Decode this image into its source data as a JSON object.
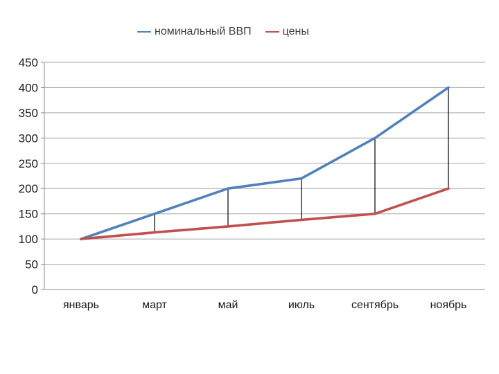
{
  "chart_data": {
    "type": "line",
    "title": "",
    "categories": [
      "январь",
      "март",
      "май",
      "июль",
      "сентябрь",
      "ноябрь"
    ],
    "series": [
      {
        "name": "номинальный ВВП",
        "color": "#4f81bd",
        "values": [
          100,
          150,
          200,
          220,
          300,
          400
        ]
      },
      {
        "name": "цены",
        "color": "#c0504d",
        "values": [
          100,
          113,
          125,
          138,
          150,
          200
        ]
      }
    ],
    "connector_indices": [
      1,
      2,
      3,
      4,
      5
    ],
    "connector_color": "#000000",
    "xlabel": "",
    "ylabel": "",
    "ylim": [
      0,
      450
    ],
    "ystep": 50,
    "yticks": [
      0,
      50,
      100,
      150,
      200,
      250,
      300,
      350,
      400,
      450
    ],
    "grid": "horizontal",
    "gridline_color": "#a6a6a6",
    "axis_color": "#8c8c8c",
    "tick_label_color": "#1a1a1a",
    "legend_position": "top",
    "background_color": "#ffffff"
  }
}
